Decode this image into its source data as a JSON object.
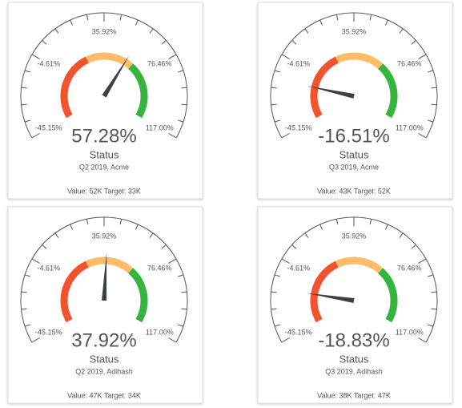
{
  "chart_data": [
    {
      "type": "gauge",
      "title": "Status",
      "subtitle": "Q2 2019, Acme",
      "footer": "Value: 52K Target: 33K",
      "value": 57.28,
      "value_label": "57.28%",
      "ylim": [
        -45.15,
        117.0
      ],
      "yticks": [
        {
          "value": -45.15,
          "label": "-45.15%"
        },
        {
          "value": -4.61,
          "label": "-4.61%"
        },
        {
          "value": 35.92,
          "label": "35.92%"
        },
        {
          "value": 76.46,
          "label": "76.46%"
        },
        {
          "value": 117.0,
          "label": "117.00%"
        }
      ],
      "minor_ticks": 4,
      "needle_color": "#3a4044",
      "bands": [
        {
          "from": -45.15,
          "to": 19,
          "color": "#f2532f"
        },
        {
          "from": 19,
          "to": 64,
          "color": "#fdbd68"
        },
        {
          "from": 64,
          "to": 117.0,
          "color": "#35b540"
        }
      ]
    },
    {
      "type": "gauge",
      "title": "Status",
      "subtitle": "Q3 2019, Acme",
      "footer": "Value: 43K Target: 52K",
      "value": -16.51,
      "value_label": "-16.51%",
      "ylim": [
        -45.15,
        117.0
      ],
      "yticks": [
        {
          "value": -45.15,
          "label": "-45.15%"
        },
        {
          "value": -4.61,
          "label": "-4.61%"
        },
        {
          "value": 35.92,
          "label": "35.92%"
        },
        {
          "value": 76.46,
          "label": "76.46%"
        },
        {
          "value": 117.0,
          "label": "117.00%"
        }
      ],
      "minor_ticks": 4,
      "needle_color": "#3a4044",
      "bands": [
        {
          "from": -45.15,
          "to": 19,
          "color": "#f2532f"
        },
        {
          "from": 19,
          "to": 64,
          "color": "#fdbd68"
        },
        {
          "from": 64,
          "to": 117.0,
          "color": "#35b540"
        }
      ]
    },
    {
      "type": "gauge",
      "title": "Status",
      "subtitle": "Q2 2019, Adihash",
      "footer": "Value: 47K Target: 34K",
      "value": 37.92,
      "value_label": "37.92%",
      "ylim": [
        -45.15,
        117.0
      ],
      "yticks": [
        {
          "value": -45.15,
          "label": "-45.15%"
        },
        {
          "value": -4.61,
          "label": "-4.61%"
        },
        {
          "value": 35.92,
          "label": "35.92%"
        },
        {
          "value": 76.46,
          "label": "76.46%"
        },
        {
          "value": 117.0,
          "label": "117.00%"
        }
      ],
      "minor_ticks": 4,
      "needle_color": "#3a4044",
      "bands": [
        {
          "from": -45.15,
          "to": 19,
          "color": "#f2532f"
        },
        {
          "from": 19,
          "to": 64,
          "color": "#fdbd68"
        },
        {
          "from": 64,
          "to": 117.0,
          "color": "#35b540"
        }
      ]
    },
    {
      "type": "gauge",
      "title": "Status",
      "subtitle": "Q3 2019, Adihash",
      "footer": "Value: 38K Target: 47K",
      "value": -18.83,
      "value_label": "-18.83%",
      "ylim": [
        -45.15,
        117.0
      ],
      "yticks": [
        {
          "value": -45.15,
          "label": "-45.15%"
        },
        {
          "value": -4.61,
          "label": "-4.61%"
        },
        {
          "value": 35.92,
          "label": "35.92%"
        },
        {
          "value": 76.46,
          "label": "76.46%"
        },
        {
          "value": 117.0,
          "label": "117.00%"
        }
      ],
      "minor_ticks": 4,
      "needle_color": "#3a4044",
      "bands": [
        {
          "from": -45.15,
          "to": 19,
          "color": "#f2532f"
        },
        {
          "from": 19,
          "to": 64,
          "color": "#fdbd68"
        },
        {
          "from": 64,
          "to": 117.0,
          "color": "#35b540"
        }
      ]
    }
  ]
}
